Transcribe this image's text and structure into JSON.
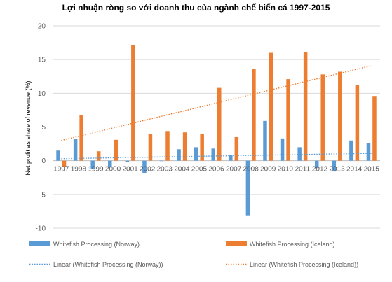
{
  "chart_data": {
    "type": "bar",
    "title": "Lợi nhuận ròng so với doanh thu của ngành chế biến cá 1997-2015",
    "ylabel": "Net profit as share of revenue (%)",
    "xlabel": "",
    "categories": [
      "1997",
      "1998",
      "1999",
      "2000",
      "2001",
      "2002",
      "2003",
      "2004",
      "2005",
      "2006",
      "2007",
      "2008",
      "2009",
      "2010",
      "2011",
      "2012",
      "2013",
      "2014",
      "2015"
    ],
    "ylim": [
      -10,
      20
    ],
    "yticks": [
      -10,
      -5,
      0,
      5,
      10,
      15,
      20
    ],
    "grid": true,
    "legend_position": "bottom",
    "series": [
      {
        "name": "Whitefish Processing (Norway)",
        "color": "#5b9bd5",
        "values": [
          1.5,
          3.2,
          -1.2,
          -1.0,
          -0.2,
          -1.8,
          0.0,
          1.7,
          2.0,
          1.8,
          0.8,
          -8.1,
          5.9,
          3.3,
          2.0,
          -1.1,
          -1.6,
          3.0,
          2.6
        ]
      },
      {
        "name": "Whitefish Processing (Iceland)",
        "color": "#ed7d31",
        "values": [
          -0.9,
          6.8,
          1.4,
          3.1,
          17.2,
          4.0,
          4.4,
          4.2,
          4.0,
          10.8,
          3.5,
          13.6,
          16.0,
          12.1,
          16.1,
          12.8,
          13.2,
          11.2,
          9.6
        ]
      }
    ],
    "trendlines": [
      {
        "name": "Linear (Whitefish Processing (Norway))",
        "color": "#5b9bd5",
        "start": 0.3,
        "end": 1.1
      },
      {
        "name": "Linear (Whitefish Processing (Iceland))",
        "color": "#ed7d31",
        "start": 3.0,
        "end": 14.1
      }
    ]
  }
}
